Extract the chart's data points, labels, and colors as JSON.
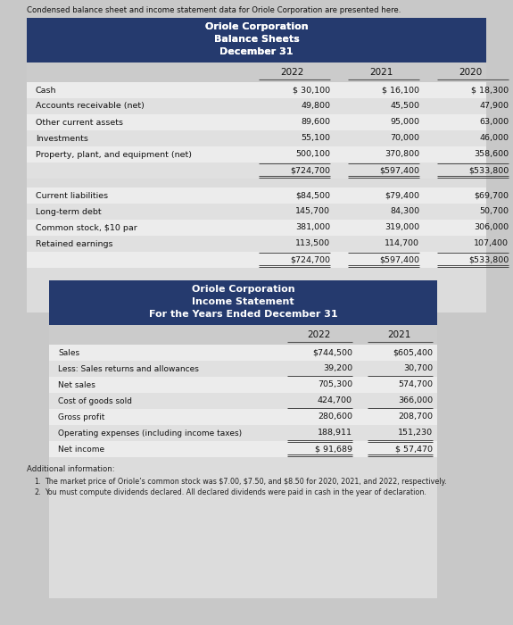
{
  "intro_text": "Condensed balance sheet and income statement data for Oriole Corporation are presented here.",
  "bs_title1": "Oriole Corporation",
  "bs_title2": "Balance Sheets",
  "bs_title3": "December 31",
  "bs_years": [
    "2022",
    "2021",
    "2020"
  ],
  "bs_assets": [
    {
      "label": "Cash",
      "vals": [
        "$ 30,100",
        "$ 16,100",
        "$ 18,300"
      ]
    },
    {
      "label": "Accounts receivable (net)",
      "vals": [
        "49,800",
        "45,500",
        "47,900"
      ]
    },
    {
      "label": "Other current assets",
      "vals": [
        "89,600",
        "95,000",
        "63,000"
      ]
    },
    {
      "label": "Investments",
      "vals": [
        "55,100",
        "70,000",
        "46,000"
      ]
    },
    {
      "label": "Property, plant, and equipment (net)",
      "vals": [
        "500,100",
        "370,800",
        "358,600"
      ]
    },
    {
      "label": "",
      "vals": [
        "$724,700",
        "$597,400",
        "$533,800"
      ],
      "total": true
    }
  ],
  "bs_liab": [
    {
      "label": "Current liabilities",
      "vals": [
        "$84,500",
        "$79,400",
        "$69,700"
      ]
    },
    {
      "label": "Long-term debt",
      "vals": [
        "145,700",
        "84,300",
        "50,700"
      ]
    },
    {
      "label": "Common stock, $10 par",
      "vals": [
        "381,000",
        "319,000",
        "306,000"
      ]
    },
    {
      "label": "Retained earnings",
      "vals": [
        "113,500",
        "114,700",
        "107,400"
      ]
    },
    {
      "label": "",
      "vals": [
        "$724,700",
        "$597,400",
        "$533,800"
      ],
      "total": true
    }
  ],
  "is_title1": "Oriole Corporation",
  "is_title2": "Income Statement",
  "is_title3": "For the Years Ended December 31",
  "is_years": [
    "2022",
    "2021"
  ],
  "is_rows": [
    {
      "label": "Sales",
      "vals": [
        "$744,500",
        "$605,400"
      ]
    },
    {
      "label": "Less: Sales returns and allowances",
      "vals": [
        "39,200",
        "30,700"
      ],
      "underline": true
    },
    {
      "label": "Net sales",
      "vals": [
        "705,300",
        "574,700"
      ]
    },
    {
      "label": "Cost of goods sold",
      "vals": [
        "424,700",
        "366,000"
      ],
      "underline": true
    },
    {
      "label": "Gross profit",
      "vals": [
        "280,600",
        "208,700"
      ]
    },
    {
      "label": "Operating expenses (including income taxes)",
      "vals": [
        "188,911",
        "151,230"
      ],
      "underline": true
    },
    {
      "label": "Net income",
      "vals": [
        "$ 91,689",
        "$ 57,470"
      ],
      "total": true
    }
  ],
  "additional_info": "Additional information:",
  "add_point1": "The market price of Oriole’s common stock was $7.00, $7.50, and $8.50 for 2020, 2021, and 2022, respectively.",
  "add_point2": "You must compute dividends declared. All declared dividends were paid in cash in the year of declaration.",
  "header_bg": "#253A6E",
  "header_text": "#FFFFFF",
  "page_bg": "#C8C8C8",
  "table_bg": "#DEDEDE",
  "row_bg": "#E8E8E8",
  "yr_header_bg": "#CBCBCB"
}
